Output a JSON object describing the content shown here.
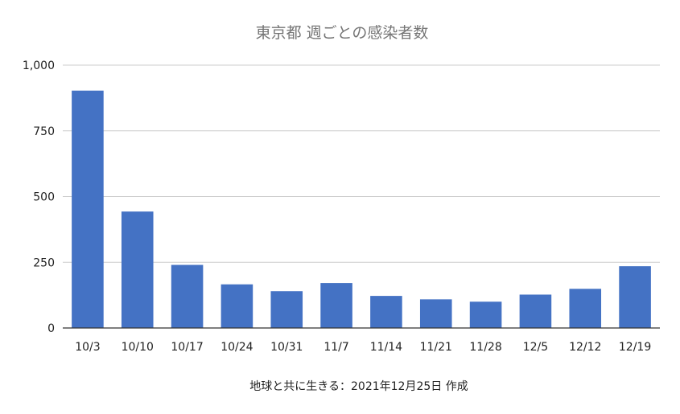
{
  "chart_data": {
    "type": "bar",
    "title": "東京都 週ごとの感染者数",
    "categories": [
      "10/3",
      "10/10",
      "10/17",
      "10/24",
      "10/31",
      "11/7",
      "11/14",
      "11/21",
      "11/28",
      "12/5",
      "12/12",
      "12/19"
    ],
    "values": [
      903,
      443,
      240,
      166,
      140,
      171,
      122,
      109,
      100,
      127,
      149,
      235
    ],
    "ylim": [
      0,
      1000
    ],
    "yticks": [
      0,
      250,
      500,
      750,
      1000
    ],
    "ytick_labels": [
      "0",
      "250",
      "500",
      "750",
      "1,000"
    ],
    "grid": true,
    "legend": "none",
    "bar_color": "#4472c4",
    "caption": "地球と共に生きる：2021年12月25日 作成"
  }
}
